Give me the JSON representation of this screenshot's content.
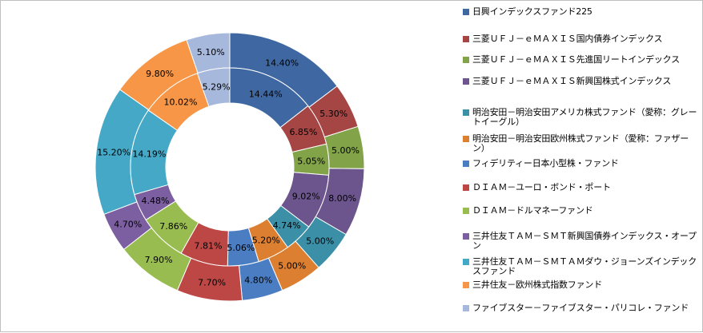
{
  "chart_data": {
    "type": "doughnut",
    "series": [
      {
        "values": [
          14.4,
          5.3,
          5.0,
          8.0,
          5.0,
          5.0,
          4.8,
          7.7,
          7.9,
          4.7,
          15.2,
          9.8,
          5.1
        ],
        "labels": [
          "14.40%",
          "5.30%",
          "5.00%",
          "8.00%",
          "5.00%",
          "5.00%",
          "4.80%",
          "7.70%",
          "7.90%",
          "4.70%",
          "15.20%",
          "9.80%",
          "5.10%"
        ]
      },
      {
        "values": [
          14.44,
          6.85,
          5.05,
          9.02,
          4.74,
          5.2,
          5.06,
          7.81,
          7.86,
          4.48,
          14.19,
          10.02,
          5.29
        ],
        "labels": [
          "14.44%",
          "6.85%",
          "5.05%",
          "9.02%",
          "4.74%",
          "5.20%",
          "5.06%",
          "7.81%",
          "7.86%",
          "4.48%",
          "14.19%",
          "10.02%",
          "5.29%"
        ]
      }
    ],
    "categories": [
      "日興インデックスファンド225",
      "三菱ＵＦＪ－ｅＭＡＸＩＳ国内債券インデックス",
      "三菱ＵＦＪ－ｅＭＡＸＩＳ先進国リートインデックス",
      "三菱ＵＦＪ－ｅＭＡＸＩＳ新興国株式インデックス",
      "明治安田－明治安田アメリカ株式ファンド（愛称：グレートイーグル）",
      "明治安田－明治安田欧州株式ファンド（愛称：ファザーン）",
      "フィデリティー日本小型株・ファンド",
      "ＤＩＡＭ－ユーロ・ボンド・ポート",
      "ＤＩＡＭ－ドルマネーファンド",
      "三井住友ＴＡＭ－ＳＭＴ新興国債券インデックス・オープン",
      "三井住友ＴＡＭ－ＳＭＴＡＭダウ・ジョーンズインデックスファンド",
      "三井住友－欧州株式指数ファンド",
      "ファイブスター－ファイブスター・パリコレ・ファンド"
    ],
    "colors": [
      "#3F68A2",
      "#A64644",
      "#82A348",
      "#6B558C",
      "#3B8FA6",
      "#DC7F30",
      "#4B7DC3",
      "#BD4745",
      "#99BC50",
      "#7C5FA0",
      "#44A8C6",
      "#F79646",
      "#A6B8DB"
    ],
    "legend": "right"
  }
}
